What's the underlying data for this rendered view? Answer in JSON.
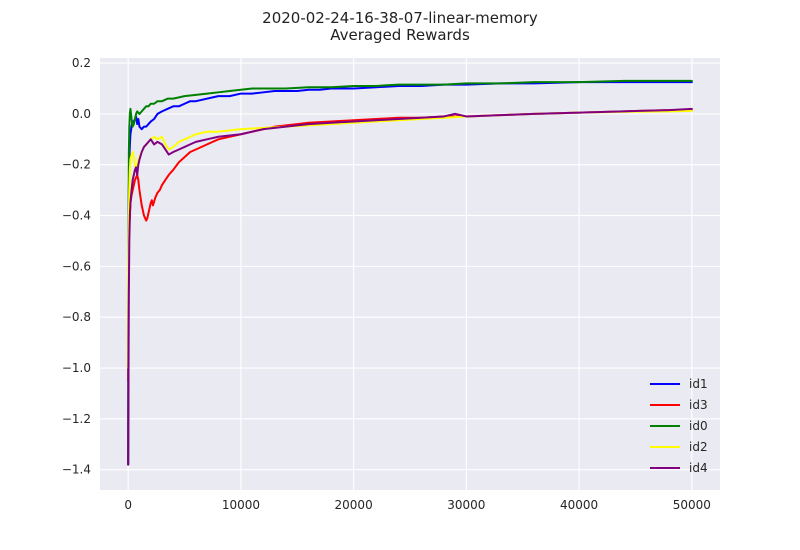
{
  "chart_data": {
    "type": "line",
    "title": "2020-02-24-16-38-07-linear-memory",
    "subtitle": "Averaged Rewards",
    "xlabel": "",
    "ylabel": "",
    "xlim": [
      -2500,
      52500
    ],
    "ylim": [
      -1.48,
      0.22
    ],
    "x_ticks": [
      0,
      10000,
      20000,
      30000,
      40000,
      50000
    ],
    "y_ticks": [
      0.2,
      0.0,
      -0.2,
      -0.4,
      -0.6,
      -0.8,
      -1.0,
      -1.2,
      -1.4
    ],
    "x_tick_labels": [
      "0",
      "10000",
      "20000",
      "30000",
      "40000",
      "50000"
    ],
    "y_tick_labels": [
      "0.2",
      "0.0",
      "−0.2",
      "−0.4",
      "−0.6",
      "−0.8",
      "−1.0",
      "−1.2",
      "−1.4"
    ],
    "grid": true,
    "legend_position": "bottom-right",
    "background": "#eaeaf2",
    "series": [
      {
        "name": "id1",
        "color": "#0000ff",
        "x": [
          0,
          30,
          60,
          100,
          150,
          200,
          300,
          400,
          500,
          600,
          700,
          800,
          900,
          1000,
          1200,
          1400,
          1600,
          1800,
          2000,
          2300,
          2600,
          3000,
          3500,
          4000,
          4500,
          5000,
          5500,
          6000,
          7000,
          8000,
          9000,
          10000,
          11000,
          12000,
          13000,
          14000,
          15000,
          16000,
          17000,
          18000,
          20000,
          22000,
          24000,
          26000,
          28000,
          30000,
          33000,
          36000,
          40000,
          44000,
          48000,
          50000
        ],
        "y": [
          -1.38,
          -0.6,
          -0.3,
          -0.18,
          -0.12,
          -0.08,
          -0.05,
          -0.03,
          -0.03,
          -0.02,
          -0.01,
          -0.04,
          -0.02,
          -0.05,
          -0.06,
          -0.05,
          -0.05,
          -0.04,
          -0.03,
          -0.02,
          0.0,
          0.01,
          0.02,
          0.03,
          0.03,
          0.04,
          0.05,
          0.05,
          0.06,
          0.07,
          0.07,
          0.08,
          0.08,
          0.085,
          0.09,
          0.09,
          0.09,
          0.095,
          0.095,
          0.1,
          0.1,
          0.105,
          0.11,
          0.11,
          0.115,
          0.115,
          0.12,
          0.12,
          0.125,
          0.125,
          0.125,
          0.125
        ]
      },
      {
        "name": "id3",
        "color": "#ff0000",
        "x": [
          0,
          30,
          60,
          100,
          150,
          200,
          300,
          400,
          500,
          600,
          700,
          800,
          900,
          1000,
          1100,
          1200,
          1300,
          1400,
          1500,
          1600,
          1700,
          1800,
          1900,
          2000,
          2100,
          2200,
          2400,
          2600,
          2800,
          3000,
          3300,
          3600,
          4000,
          4500,
          5000,
          5500,
          6000,
          7000,
          8000,
          9000,
          10000,
          11000,
          12000,
          13000,
          14000,
          15000,
          16000,
          18000,
          20000,
          22000,
          24000,
          26000,
          28000,
          30000,
          33000,
          36000,
          40000,
          44000,
          48000,
          50000
        ],
        "y": [
          -1.05,
          -0.7,
          -0.5,
          -0.45,
          -0.4,
          -0.35,
          -0.32,
          -0.3,
          -0.28,
          -0.26,
          -0.25,
          -0.24,
          -0.26,
          -0.3,
          -0.33,
          -0.36,
          -0.38,
          -0.4,
          -0.41,
          -0.42,
          -0.41,
          -0.39,
          -0.37,
          -0.35,
          -0.34,
          -0.36,
          -0.33,
          -0.31,
          -0.3,
          -0.28,
          -0.26,
          -0.24,
          -0.22,
          -0.19,
          -0.17,
          -0.15,
          -0.14,
          -0.12,
          -0.1,
          -0.09,
          -0.08,
          -0.07,
          -0.06,
          -0.05,
          -0.045,
          -0.04,
          -0.035,
          -0.03,
          -0.025,
          -0.02,
          -0.015,
          -0.015,
          -0.01,
          -0.01,
          -0.005,
          0.0,
          0.005,
          0.01,
          0.015,
          0.015
        ]
      },
      {
        "name": "id0",
        "color": "#008000",
        "x": [
          0,
          30,
          60,
          100,
          150,
          200,
          300,
          400,
          500,
          600,
          700,
          800,
          1000,
          1200,
          1400,
          1600,
          1800,
          2000,
          2300,
          2600,
          3000,
          3500,
          4000,
          4500,
          5000,
          6000,
          7000,
          8000,
          9000,
          10000,
          11000,
          12000,
          14000,
          16000,
          18000,
          20000,
          22000,
          24000,
          26000,
          28000,
          30000,
          33000,
          36000,
          40000,
          44000,
          48000,
          50000
        ],
        "y": [
          -1.38,
          -0.5,
          -0.15,
          -0.05,
          0.0,
          0.02,
          -0.02,
          -0.05,
          -0.04,
          -0.02,
          0.0,
          0.01,
          0.0,
          0.01,
          0.02,
          0.03,
          0.03,
          0.04,
          0.04,
          0.05,
          0.05,
          0.06,
          0.06,
          0.065,
          0.07,
          0.075,
          0.08,
          0.085,
          0.09,
          0.095,
          0.1,
          0.1,
          0.1,
          0.105,
          0.105,
          0.11,
          0.11,
          0.115,
          0.115,
          0.115,
          0.12,
          0.12,
          0.125,
          0.125,
          0.13,
          0.13,
          0.13
        ]
      },
      {
        "name": "id2",
        "color": "#ffff00",
        "x": [
          0,
          30,
          60,
          100,
          150,
          200,
          300,
          400,
          500,
          600,
          700,
          800,
          900,
          1000,
          1200,
          1400,
          1600,
          1800,
          2000,
          2300,
          2600,
          3000,
          3300,
          3600,
          4000,
          4500,
          5000,
          5500,
          6000,
          7000,
          8000,
          9000,
          10000,
          12000,
          14000,
          16000,
          18000,
          20000,
          22000,
          24000,
          26000,
          28000,
          30000,
          33000,
          36000,
          40000,
          44000,
          48000,
          50000
        ],
        "y": [
          -1.0,
          -0.6,
          -0.4,
          -0.3,
          -0.22,
          -0.18,
          -0.16,
          -0.15,
          -0.17,
          -0.2,
          -0.23,
          -0.2,
          -0.18,
          -0.17,
          -0.15,
          -0.13,
          -0.12,
          -0.11,
          -0.1,
          -0.09,
          -0.1,
          -0.09,
          -0.12,
          -0.14,
          -0.13,
          -0.11,
          -0.1,
          -0.09,
          -0.08,
          -0.07,
          -0.07,
          -0.065,
          -0.06,
          -0.055,
          -0.05,
          -0.045,
          -0.04,
          -0.035,
          -0.03,
          -0.025,
          -0.02,
          -0.015,
          -0.01,
          -0.005,
          0.0,
          0.005,
          0.008,
          0.01,
          0.012
        ]
      },
      {
        "name": "id4",
        "color": "#800080",
        "x": [
          0,
          30,
          60,
          100,
          150,
          200,
          300,
          400,
          500,
          600,
          700,
          800,
          900,
          1000,
          1200,
          1400,
          1600,
          1800,
          2000,
          2300,
          2600,
          3000,
          3300,
          3600,
          4000,
          4500,
          5000,
          5500,
          6000,
          7000,
          8000,
          9000,
          10000,
          11000,
          12000,
          14000,
          16000,
          18000,
          20000,
          22000,
          24000,
          26000,
          28000,
          29000,
          30000,
          33000,
          36000,
          40000,
          44000,
          48000,
          50000
        ],
        "y": [
          -1.38,
          -1.0,
          -0.7,
          -0.5,
          -0.4,
          -0.35,
          -0.3,
          -0.26,
          -0.24,
          -0.22,
          -0.21,
          -0.24,
          -0.2,
          -0.18,
          -0.15,
          -0.13,
          -0.12,
          -0.11,
          -0.1,
          -0.12,
          -0.11,
          -0.12,
          -0.14,
          -0.16,
          -0.15,
          -0.14,
          -0.13,
          -0.12,
          -0.11,
          -0.1,
          -0.09,
          -0.085,
          -0.08,
          -0.07,
          -0.06,
          -0.05,
          -0.04,
          -0.035,
          -0.03,
          -0.025,
          -0.02,
          -0.015,
          -0.01,
          0.0,
          -0.01,
          -0.005,
          0.0,
          0.005,
          0.01,
          0.015,
          0.02
        ]
      }
    ]
  }
}
